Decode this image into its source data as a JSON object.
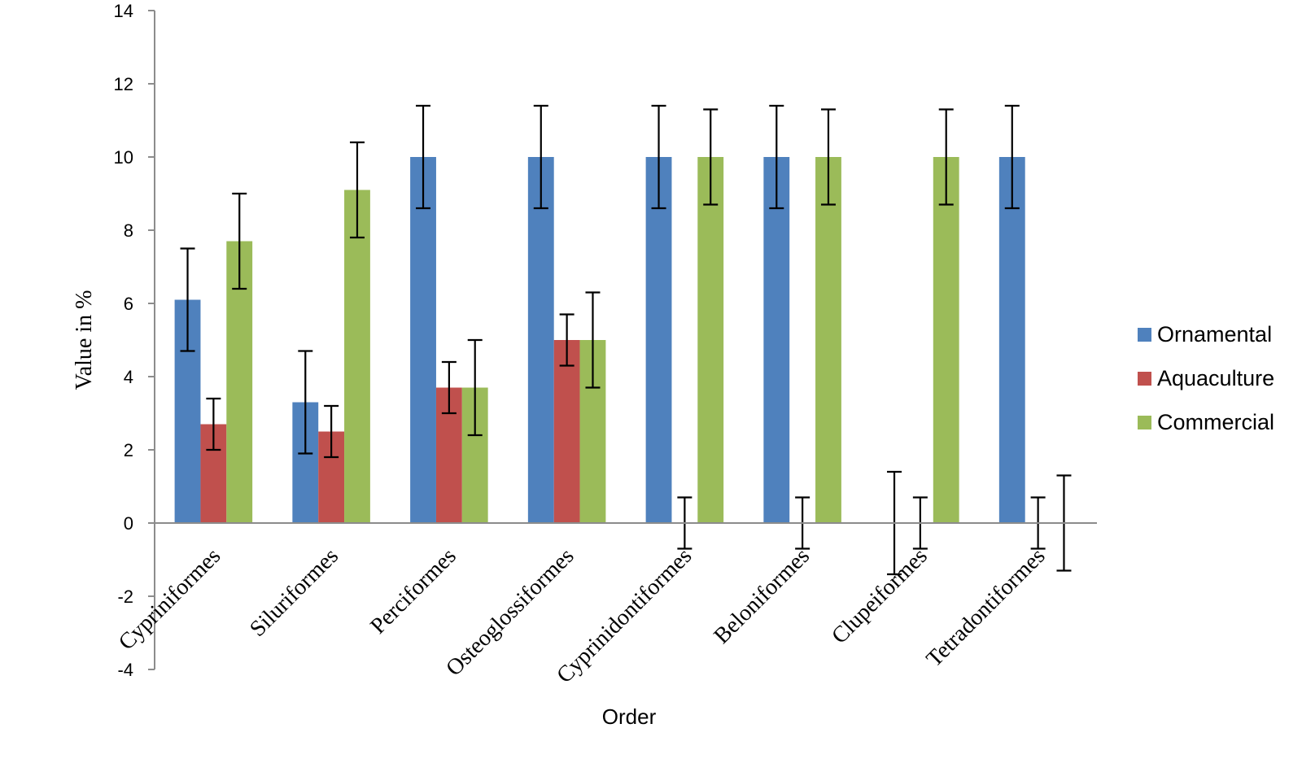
{
  "chart_data": {
    "type": "bar",
    "title": "",
    "xlabel": "Order",
    "ylabel": "Value in %",
    "ylim": [
      -4,
      14
    ],
    "yticks": [
      -4,
      -2,
      0,
      2,
      4,
      6,
      8,
      10,
      12,
      14
    ],
    "categories": [
      "Cypriniformes",
      "Siluriformes",
      "Perciformes",
      "Osteoglossiformes",
      "Cyprinidontiformes",
      "Beloniformes",
      "Clupeiformes",
      "Tetradontiformes"
    ],
    "series": [
      {
        "name": "Ornamental",
        "color": "#4F81BD",
        "values": [
          6.1,
          3.3,
          10,
          10,
          10,
          10,
          0,
          10
        ],
        "errors": [
          1.4,
          1.4,
          1.4,
          1.4,
          1.4,
          1.4,
          1.4,
          1.4
        ]
      },
      {
        "name": "Aquaculture",
        "color": "#C0504D",
        "values": [
          2.7,
          2.5,
          3.7,
          5,
          0,
          0,
          0,
          0
        ],
        "errors": [
          0.7,
          0.7,
          0.7,
          0.7,
          0.7,
          0.7,
          0.7,
          0.7
        ]
      },
      {
        "name": "Commercial",
        "color": "#9BBB59",
        "values": [
          7.7,
          9.1,
          3.7,
          5,
          10,
          10,
          10,
          0
        ],
        "errors": [
          1.3,
          1.3,
          1.3,
          1.3,
          1.3,
          1.3,
          1.3,
          1.3
        ]
      }
    ],
    "grid": false,
    "legend_position": "right"
  }
}
